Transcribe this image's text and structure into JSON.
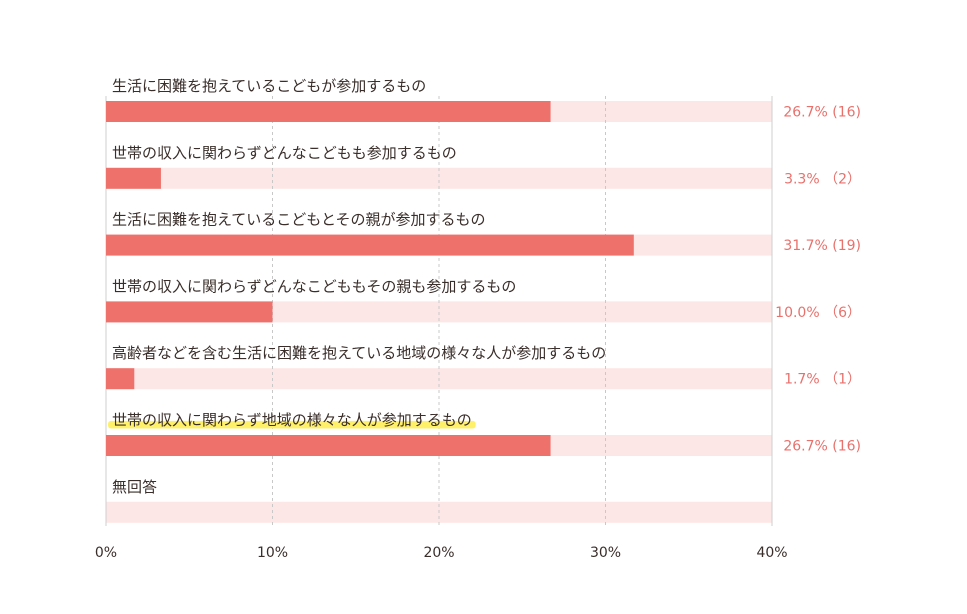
{
  "chart_data": {
    "type": "bar",
    "orientation": "horizontal",
    "categories": [
      "生活に困難を抱えているこどもが参加するもの",
      "世帯の収入に関わらずどんなこどもも参加するもの",
      "生活に困難を抱えているこどもとその親が参加するもの",
      "世帯の収入に関わらずどんなこどももその親も参加するもの",
      "高齢者などを含む生活に困難を抱えている地域の様々な人が参加するもの",
      "世帯の収入に関わらず地域の様々な人が参加するもの",
      "無回答"
    ],
    "values": [
      26.7,
      3.3,
      31.7,
      10.0,
      1.7,
      26.7,
      0
    ],
    "value_labels": [
      "26.7% (16)",
      "3.3% （2）",
      "31.7% (19)",
      "10.0% （6）",
      "1.7% （1）",
      "26.7% (16)",
      ""
    ],
    "highlighted_category_index": 5,
    "xlim": [
      0,
      40
    ],
    "xticks": [
      0,
      10,
      20,
      30,
      40
    ],
    "xtick_labels": [
      "0%",
      "10%",
      "20%",
      "30%",
      "40%"
    ],
    "grid": true,
    "colors": {
      "bar": "#ee716c",
      "track": "#fde7e6",
      "value_text": "#e8716c",
      "label_text": "#3a2e2a",
      "highlight": "#fff06a",
      "grid": "#c8c8c8",
      "axis": "#cfcfcf"
    }
  }
}
